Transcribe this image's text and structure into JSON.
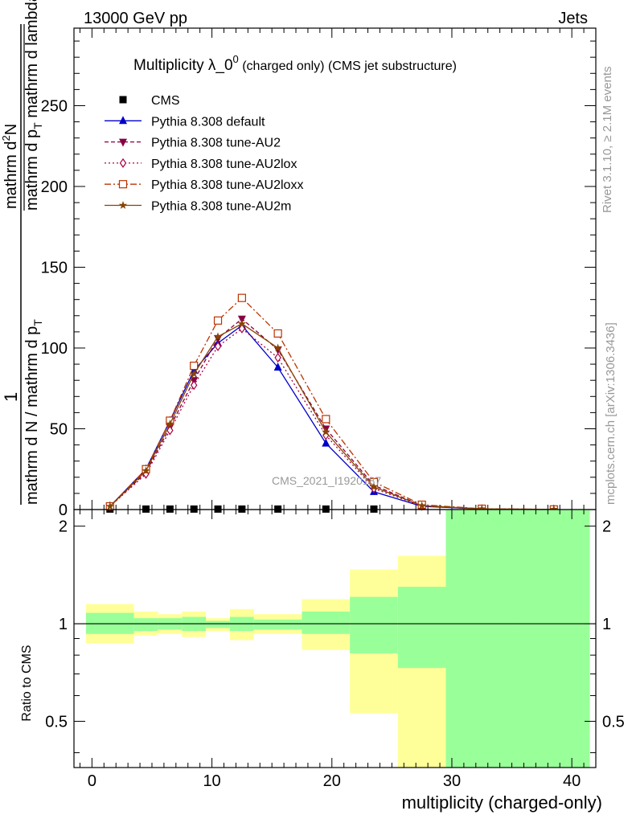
{
  "header": {
    "left": "13000 GeV pp",
    "right": "Jets"
  },
  "side": {
    "rivet": "Rivet 3.1.10, ≥ 2.1M events",
    "mcplots": "mcplots.cern.ch [arXiv:1306.3436]"
  },
  "title": {
    "main": "Multiplicity λ_0",
    "sup": "0",
    "sub": " (charged only) (CMS jet substructure)"
  },
  "ylabel_top": {
    "one": "1",
    "denom": "mathrm d N / mathrm d p",
    "denom_sub": "T",
    "numer_part1": "mathrm d",
    "numer_sup": "2",
    "numer_part2": "N",
    "numer_den": "mathrm d p",
    "numer_den_sub": "T",
    "numer_den_tail": " mathrm d lambda"
  },
  "ylabel_bottom": "Ratio to CMS",
  "xlabel": "multiplicity (charged-only)",
  "watermark": "CMS_2021_I1920187",
  "chart_data": [
    {
      "type": "line",
      "title": "Multiplicity λ_0^0 (charged only) (CMS jet substructure)",
      "xlabel": "multiplicity (charged-only)",
      "ylabel": "1 / (mathrm d N / mathrm d p_T) mathrm d^2N / (mathrm d p_T mathrm d lambda)",
      "xlim": [
        -1.5,
        42
      ],
      "ylim": [
        0,
        298
      ],
      "x_ticks": [
        0,
        10,
        20,
        30,
        40
      ],
      "y_ticks": [
        0,
        50,
        100,
        150,
        200,
        250
      ],
      "legend_position": "top-left",
      "series": [
        {
          "name": "CMS",
          "color": "#000000",
          "marker": "square",
          "style": "none",
          "points": [
            [
              1.5,
              0.3
            ],
            [
              4.5,
              0.3
            ],
            [
              6.5,
              0.3
            ],
            [
              8.5,
              0.3
            ],
            [
              10.5,
              0.3
            ],
            [
              12.5,
              0.3
            ],
            [
              15.5,
              0.3
            ],
            [
              19.5,
              0.3
            ],
            [
              23.5,
              0.3
            ]
          ]
        },
        {
          "name": "Pythia 8.308 default",
          "color": "#0000cc",
          "marker": "triangle-up",
          "style": "solid",
          "points": [
            [
              1.5,
              2
            ],
            [
              4.5,
              25
            ],
            [
              6.5,
              55
            ],
            [
              8.5,
              86
            ],
            [
              10.5,
              103
            ],
            [
              12.5,
              114
            ],
            [
              15.5,
              88
            ],
            [
              19.5,
              41
            ],
            [
              23.5,
              11
            ],
            [
              27.5,
              2
            ],
            [
              32.5,
              0.3
            ],
            [
              38.5,
              0
            ]
          ]
        },
        {
          "name": "Pythia 8.308 tune-AU2",
          "color": "#880044",
          "marker": "triangle-down",
          "style": "dash",
          "points": [
            [
              1.5,
              2
            ],
            [
              4.5,
              23
            ],
            [
              6.5,
              51
            ],
            [
              8.5,
              80
            ],
            [
              10.5,
              106
            ],
            [
              12.5,
              118
            ],
            [
              15.5,
              99
            ],
            [
              19.5,
              50
            ],
            [
              23.5,
              15
            ],
            [
              27.5,
              2.5
            ],
            [
              32.5,
              0.4
            ],
            [
              38.5,
              0.1
            ]
          ]
        },
        {
          "name": "Pythia 8.308 tune-AU2lox",
          "color": "#aa0044",
          "marker": "diamond",
          "style": "dot",
          "points": [
            [
              1.5,
              2
            ],
            [
              4.5,
              22
            ],
            [
              6.5,
              49
            ],
            [
              8.5,
              77
            ],
            [
              10.5,
              101
            ],
            [
              12.5,
              112
            ],
            [
              15.5,
              94
            ],
            [
              19.5,
              46
            ],
            [
              23.5,
              13
            ],
            [
              27.5,
              2.2
            ],
            [
              32.5,
              0.3
            ],
            [
              38.5,
              0.1
            ]
          ]
        },
        {
          "name": "Pythia 8.308 tune-AU2loxx",
          "color": "#bb3300",
          "marker": "square-open",
          "style": "dashdot",
          "points": [
            [
              1.5,
              2
            ],
            [
              4.5,
              25
            ],
            [
              6.5,
              55
            ],
            [
              8.5,
              89
            ],
            [
              10.5,
              117
            ],
            [
              12.5,
              131
            ],
            [
              15.5,
              109
            ],
            [
              19.5,
              56
            ],
            [
              23.5,
              17
            ],
            [
              27.5,
              3
            ],
            [
              32.5,
              0.5
            ],
            [
              38.5,
              0.1
            ]
          ]
        },
        {
          "name": "Pythia 8.308 tune-AU2m",
          "color": "#884400",
          "marker": "star",
          "style": "solid",
          "points": [
            [
              1.5,
              2
            ],
            [
              4.5,
              24
            ],
            [
              6.5,
              53
            ],
            [
              8.5,
              84
            ],
            [
              10.5,
              107
            ],
            [
              12.5,
              115
            ],
            [
              15.5,
              100
            ],
            [
              19.5,
              48
            ],
            [
              23.5,
              14
            ],
            [
              27.5,
              2.4
            ],
            [
              32.5,
              0.4
            ],
            [
              38.5,
              0.1
            ]
          ]
        }
      ]
    },
    {
      "type": "area",
      "title": "",
      "xlabel": "multiplicity (charged-only)",
      "ylabel": "Ratio to CMS",
      "ylim": [
        0.36,
        2.25
      ],
      "y_ticks": [
        0.5,
        1,
        2
      ],
      "scale": "log",
      "reference_line": 1,
      "bands": {
        "colors": {
          "stat": "#99ff99",
          "total": "#ffff99"
        },
        "bins": [
          {
            "x0": -0.5,
            "x1": 3.5,
            "stat": [
              0.93,
              1.08
            ],
            "total": [
              0.87,
              1.15
            ]
          },
          {
            "x0": 3.5,
            "x1": 5.5,
            "stat": [
              0.95,
              1.04
            ],
            "total": [
              0.92,
              1.09
            ]
          },
          {
            "x0": 5.5,
            "x1": 7.5,
            "stat": [
              0.96,
              1.04
            ],
            "total": [
              0.93,
              1.07
            ]
          },
          {
            "x0": 7.5,
            "x1": 9.5,
            "stat": [
              0.95,
              1.05
            ],
            "total": [
              0.91,
              1.09
            ]
          },
          {
            "x0": 9.5,
            "x1": 11.5,
            "stat": [
              0.97,
              1.02
            ],
            "total": [
              0.95,
              1.04
            ]
          },
          {
            "x0": 11.5,
            "x1": 13.5,
            "stat": [
              0.95,
              1.05
            ],
            "total": [
              0.89,
              1.11
            ]
          },
          {
            "x0": 13.5,
            "x1": 17.5,
            "stat": [
              0.96,
              1.03
            ],
            "total": [
              0.93,
              1.07
            ]
          },
          {
            "x0": 17.5,
            "x1": 21.5,
            "stat": [
              0.93,
              1.09
            ],
            "total": [
              0.83,
              1.19
            ]
          },
          {
            "x0": 21.5,
            "x1": 25.5,
            "stat": [
              0.81,
              1.21
            ],
            "total": [
              0.53,
              1.47
            ]
          },
          {
            "x0": 25.5,
            "x1": 29.5,
            "stat": [
              0.73,
              1.3
            ],
            "total": [
              0.36,
              1.62
            ]
          },
          {
            "x0": 29.5,
            "x1": 35.5,
            "stat": [
              0.36,
              2.25
            ],
            "total": [
              0.36,
              2.25
            ]
          },
          {
            "x0": 35.5,
            "x1": 41.5,
            "stat": [
              0.36,
              2.25
            ],
            "total": [
              0.36,
              2.25
            ]
          }
        ]
      }
    }
  ]
}
